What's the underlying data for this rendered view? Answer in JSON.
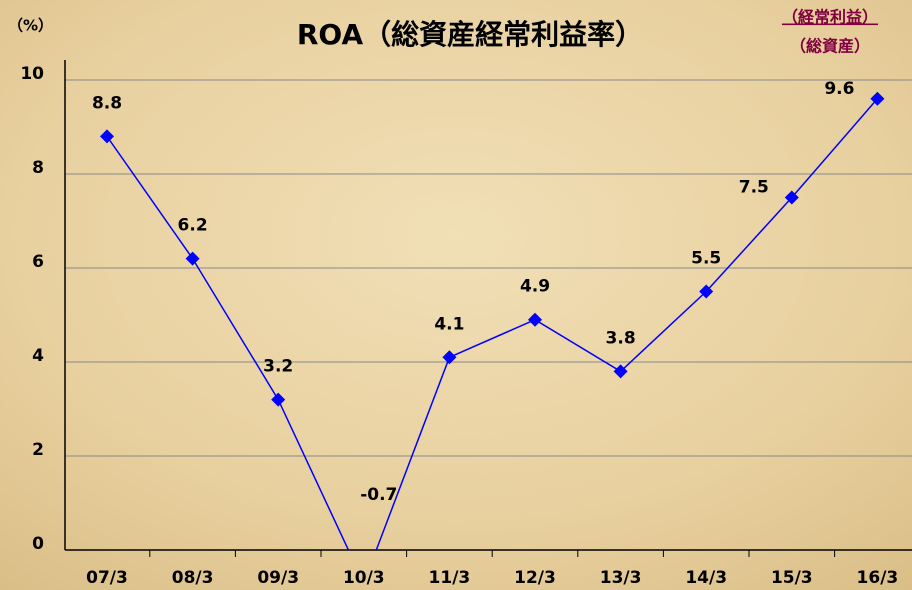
{
  "chart_data": {
    "type": "line",
    "title": "ROA（総資産経常利益率）",
    "y_unit": "（%）",
    "formula_numerator": "（経常利益）",
    "formula_denominator": "（総資産）",
    "categories": [
      "07/3",
      "08/3",
      "09/3",
      "10/3",
      "11/3",
      "12/3",
      "13/3",
      "14/3",
      "15/3",
      "16/3"
    ],
    "series": [
      {
        "name": "ROA",
        "color": "#0000ff",
        "values": [
          8.8,
          6.2,
          3.2,
          -0.7,
          4.1,
          4.9,
          3.8,
          5.5,
          7.5,
          9.6
        ]
      }
    ],
    "ylim": [
      0,
      10
    ],
    "yticks": [
      0,
      2,
      4,
      6,
      8,
      10
    ],
    "grid": true
  }
}
